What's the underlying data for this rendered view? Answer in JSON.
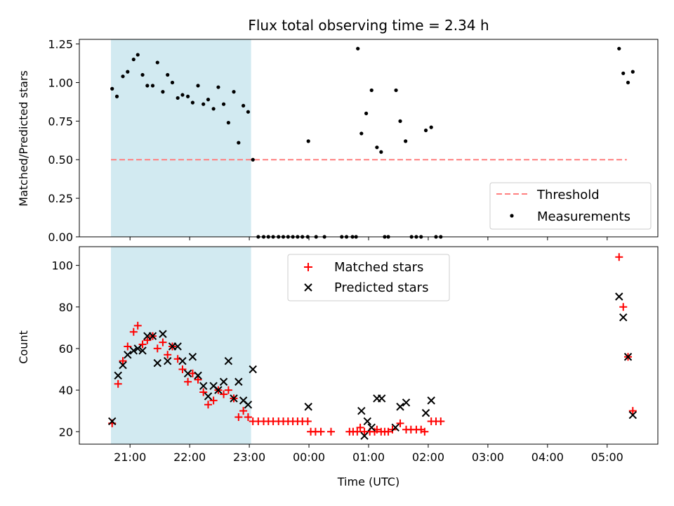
{
  "figure": {
    "title": "Flux total observing time = 2.34 h",
    "xlabel": "Time (UTC)",
    "x_ticks": [
      "21:00",
      "22:00",
      "23:00",
      "00:00",
      "01:00",
      "02:00",
      "03:00",
      "04:00",
      "05:00"
    ]
  },
  "colors": {
    "span": "#add8e6",
    "threshold": "#ff8080",
    "measurements": "#000000",
    "matched": "#ff0000",
    "predicted": "#000000"
  },
  "chart_data": [
    {
      "type": "scatter",
      "ylabel": "Matched/Predicted stars",
      "xlim": [
        -0.85,
        8.85
      ],
      "ylim": [
        0,
        1.28
      ],
      "y_ticks": [
        "0.00",
        "0.25",
        "0.50",
        "0.75",
        "1.00",
        "1.25"
      ],
      "y_tick_values": [
        0,
        0.25,
        0.5,
        0.75,
        1.0,
        1.25
      ],
      "shaded_span": [
        -0.32,
        2.03
      ],
      "threshold": {
        "name": "Threshold",
        "value": 0.5,
        "x": [
          -0.32,
          8.33
        ]
      },
      "legend_position": "lower right",
      "series": [
        {
          "name": "Measurements",
          "points": [
            [
              -0.3,
              0.96
            ],
            [
              -0.22,
              0.91
            ],
            [
              -0.12,
              1.04
            ],
            [
              -0.04,
              1.07
            ],
            [
              0.06,
              1.15
            ],
            [
              0.13,
              1.18
            ],
            [
              0.21,
              1.05
            ],
            [
              0.29,
              0.98
            ],
            [
              0.38,
              0.98
            ],
            [
              0.46,
              1.13
            ],
            [
              0.55,
              0.94
            ],
            [
              0.63,
              1.05
            ],
            [
              0.71,
              1.0
            ],
            [
              0.8,
              0.9
            ],
            [
              0.88,
              0.92
            ],
            [
              0.97,
              0.91
            ],
            [
              1.05,
              0.87
            ],
            [
              1.14,
              0.98
            ],
            [
              1.23,
              0.86
            ],
            [
              1.31,
              0.89
            ],
            [
              1.4,
              0.83
            ],
            [
              1.48,
              0.97
            ],
            [
              1.57,
              0.86
            ],
            [
              1.65,
              0.74
            ],
            [
              1.74,
              0.94
            ],
            [
              1.82,
              0.61
            ],
            [
              1.9,
              0.85
            ],
            [
              1.98,
              0.81
            ],
            [
              2.06,
              0.5
            ],
            [
              2.15,
              0
            ],
            [
              2.24,
              0
            ],
            [
              2.32,
              0
            ],
            [
              2.4,
              0
            ],
            [
              2.49,
              0
            ],
            [
              2.57,
              0
            ],
            [
              2.65,
              0
            ],
            [
              2.73,
              0
            ],
            [
              2.81,
              0
            ],
            [
              2.89,
              0
            ],
            [
              2.98,
              0
            ],
            [
              3.12,
              0
            ],
            [
              3.26,
              0
            ],
            [
              2.99,
              0.62
            ],
            [
              3.55,
              0
            ],
            [
              3.63,
              0
            ],
            [
              3.73,
              0
            ],
            [
              3.79,
              0
            ],
            [
              3.82,
              1.22
            ],
            [
              3.88,
              0.67
            ],
            [
              3.96,
              0.8
            ],
            [
              4.05,
              0.95
            ],
            [
              4.14,
              0.58
            ],
            [
              4.21,
              0.55
            ],
            [
              4.27,
              0
            ],
            [
              4.33,
              0
            ],
            [
              4.46,
              0.95
            ],
            [
              4.53,
              0.75
            ],
            [
              4.62,
              0.62
            ],
            [
              4.72,
              0
            ],
            [
              4.8,
              0
            ],
            [
              4.88,
              0
            ],
            [
              4.96,
              0.69
            ],
            [
              5.05,
              0.71
            ],
            [
              5.13,
              0
            ],
            [
              5.21,
              0
            ],
            [
              8.2,
              1.22
            ],
            [
              8.27,
              1.06
            ],
            [
              8.35,
              1.0
            ],
            [
              8.43,
              1.07
            ]
          ]
        }
      ]
    },
    {
      "type": "scatter",
      "ylabel": "Count",
      "xlim": [
        -0.85,
        8.85
      ],
      "ylim": [
        14,
        109
      ],
      "y_ticks": [
        "20",
        "40",
        "60",
        "80",
        "100"
      ],
      "y_tick_values": [
        20,
        40,
        60,
        80,
        100
      ],
      "shaded_span": [
        -0.32,
        2.03
      ],
      "legend_position": "upper center",
      "series": [
        {
          "name": "Matched stars",
          "points": [
            [
              -0.3,
              24
            ],
            [
              -0.2,
              43
            ],
            [
              -0.12,
              54
            ],
            [
              -0.04,
              61
            ],
            [
              0.06,
              68
            ],
            [
              0.13,
              71
            ],
            [
              0.21,
              62
            ],
            [
              0.29,
              64
            ],
            [
              0.38,
              66
            ],
            [
              0.46,
              60
            ],
            [
              0.55,
              63
            ],
            [
              0.63,
              57
            ],
            [
              0.71,
              61
            ],
            [
              0.8,
              55
            ],
            [
              0.88,
              50
            ],
            [
              0.97,
              44
            ],
            [
              1.05,
              48
            ],
            [
              1.14,
              45
            ],
            [
              1.23,
              39
            ],
            [
              1.31,
              33
            ],
            [
              1.4,
              35
            ],
            [
              1.48,
              40
            ],
            [
              1.57,
              38
            ],
            [
              1.65,
              40
            ],
            [
              1.74,
              36
            ],
            [
              1.82,
              27
            ],
            [
              1.9,
              30
            ],
            [
              1.98,
              27
            ],
            [
              2.06,
              25
            ],
            [
              2.15,
              25
            ],
            [
              2.24,
              25
            ],
            [
              2.32,
              25
            ],
            [
              2.4,
              25
            ],
            [
              2.49,
              25
            ],
            [
              2.57,
              25
            ],
            [
              2.65,
              25
            ],
            [
              2.73,
              25
            ],
            [
              2.81,
              25
            ],
            [
              2.89,
              25
            ],
            [
              2.98,
              25
            ],
            [
              3.03,
              20
            ],
            [
              3.11,
              20
            ],
            [
              3.2,
              20
            ],
            [
              3.37,
              20
            ],
            [
              3.68,
              20
            ],
            [
              3.74,
              20
            ],
            [
              3.81,
              20
            ],
            [
              3.86,
              22
            ],
            [
              3.93,
              20
            ],
            [
              4.02,
              20
            ],
            [
              4.1,
              20
            ],
            [
              4.14,
              21
            ],
            [
              4.21,
              20
            ],
            [
              4.27,
              20
            ],
            [
              4.33,
              20
            ],
            [
              4.4,
              21
            ],
            [
              4.53,
              24
            ],
            [
              4.63,
              21
            ],
            [
              4.71,
              21
            ],
            [
              4.8,
              21
            ],
            [
              4.88,
              21
            ],
            [
              4.94,
              20
            ],
            [
              5.05,
              25
            ],
            [
              5.13,
              25
            ],
            [
              5.21,
              25
            ],
            [
              8.2,
              104
            ],
            [
              8.27,
              80
            ],
            [
              8.35,
              56
            ],
            [
              8.43,
              30
            ]
          ]
        },
        {
          "name": "Predicted stars",
          "points": [
            [
              -0.3,
              25
            ],
            [
              -0.2,
              47
            ],
            [
              -0.12,
              52
            ],
            [
              -0.04,
              57
            ],
            [
              0.06,
              59
            ],
            [
              0.13,
              60
            ],
            [
              0.21,
              59
            ],
            [
              0.29,
              66
            ],
            [
              0.38,
              66
            ],
            [
              0.46,
              53
            ],
            [
              0.55,
              67
            ],
            [
              0.63,
              54
            ],
            [
              0.71,
              61
            ],
            [
              0.8,
              61
            ],
            [
              0.88,
              54
            ],
            [
              0.97,
              48
            ],
            [
              1.05,
              56
            ],
            [
              1.14,
              47
            ],
            [
              1.23,
              42
            ],
            [
              1.31,
              37
            ],
            [
              1.4,
              42
            ],
            [
              1.48,
              40
            ],
            [
              1.57,
              44
            ],
            [
              1.65,
              54
            ],
            [
              1.74,
              36
            ],
            [
              1.82,
              44
            ],
            [
              1.9,
              35
            ],
            [
              1.98,
              33
            ],
            [
              2.06,
              50
            ],
            [
              2.99,
              32
            ],
            [
              3.88,
              30
            ],
            [
              3.93,
              18
            ],
            [
              3.98,
              25
            ],
            [
              4.05,
              22
            ],
            [
              4.14,
              36
            ],
            [
              4.22,
              36
            ],
            [
              4.45,
              22
            ],
            [
              4.53,
              32
            ],
            [
              4.63,
              34
            ],
            [
              4.96,
              29
            ],
            [
              5.05,
              35
            ],
            [
              8.2,
              85
            ],
            [
              8.27,
              75
            ],
            [
              8.35,
              56
            ],
            [
              8.43,
              28
            ]
          ]
        }
      ]
    }
  ]
}
